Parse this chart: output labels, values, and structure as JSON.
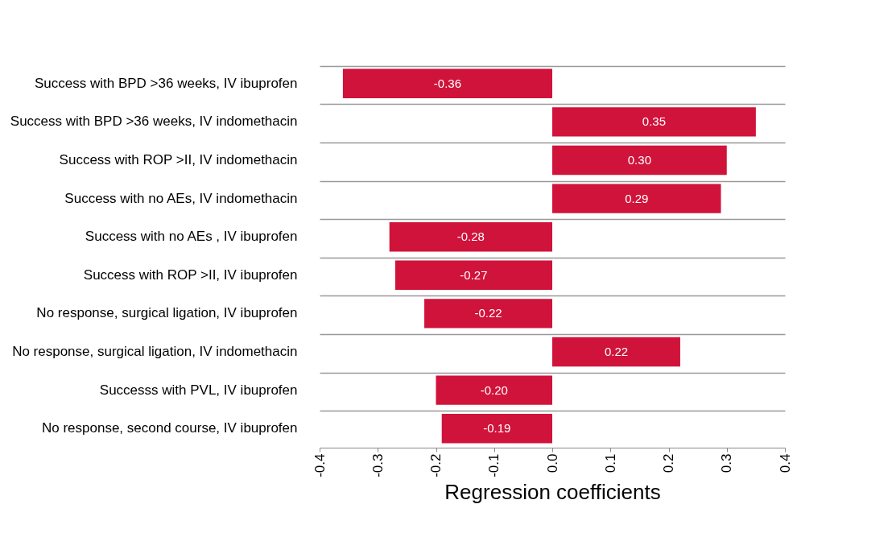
{
  "chart_data": {
    "type": "bar",
    "orientation": "horizontal",
    "xlabel": "Regression coefficients",
    "categories": [
      "Success with BPD >36 weeks, IV ibuprofen",
      "Success with BPD >36 weeks, IV indomethacin",
      "Success with ROP >II, IV indomethacin",
      "Success with no AEs, IV indomethacin",
      "Success with no AEs , IV ibuprofen",
      "Success with ROP >II, IV ibuprofen",
      "No response, surgical ligation, IV ibuprofen",
      "No response, surgical ligation, IV indomethacin",
      "Successs with PVL, IV ibuprofen",
      "No response, second course, IV ibuprofen"
    ],
    "values": [
      -0.36,
      0.35,
      0.3,
      0.29,
      -0.28,
      -0.27,
      -0.22,
      0.22,
      -0.2,
      -0.19
    ],
    "value_labels": [
      "-0.36",
      "0.35",
      "0.30",
      "0.29",
      "-0.28",
      "-0.27",
      "-0.22",
      "0.22",
      "-0.20",
      "-0.19"
    ],
    "color": "#d0133a",
    "grid": "y",
    "xlim": [
      -0.4,
      0.4
    ],
    "xticks": [
      -0.4,
      -0.3,
      -0.2,
      -0.1,
      {
        "value": 0,
        "label": "0.0"
      },
      0.1,
      0.2,
      0.3,
      0.4
    ]
  }
}
